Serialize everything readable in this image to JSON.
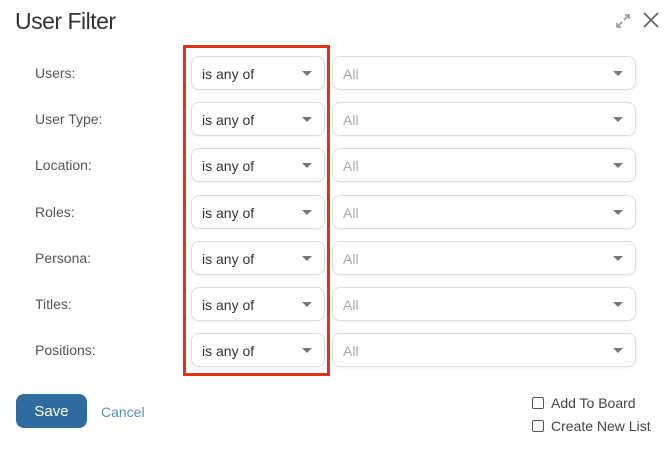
{
  "title": "User Filter",
  "icons": {
    "expand": "expand-icon",
    "close": "close-icon"
  },
  "rows": [
    {
      "label": "Users:",
      "operator": "is any of",
      "value": "All"
    },
    {
      "label": "User Type:",
      "operator": "is any of",
      "value": "All"
    },
    {
      "label": "Location:",
      "operator": "is any of",
      "value": "All"
    },
    {
      "label": "Roles:",
      "operator": "is any of",
      "value": "All"
    },
    {
      "label": "Persona:",
      "operator": "is any of",
      "value": "All"
    },
    {
      "label": "Titles:",
      "operator": "is any of",
      "value": "All"
    },
    {
      "label": "Positions:",
      "operator": "is any of",
      "value": "All"
    }
  ],
  "footer": {
    "save": "Save",
    "cancel": "Cancel",
    "add_to_board": "Add To Board",
    "create_new_list": "Create New List",
    "add_to_board_checked": false,
    "create_new_list_checked": false
  },
  "colors": {
    "highlight": "#e0341a",
    "primary": "#2f6b9e",
    "link": "#5a8fb5"
  }
}
